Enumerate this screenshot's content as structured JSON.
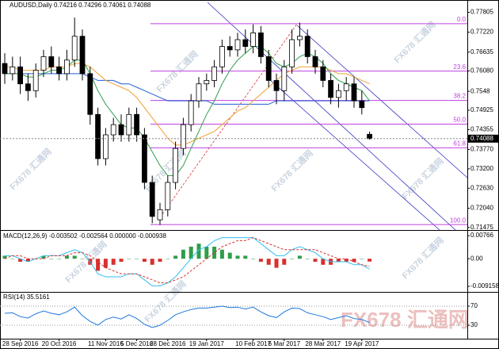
{
  "chart_data": [
    {
      "type": "candlestick",
      "title": "AUDUSD,Daily  0.74216 0.74296 0.74061 0.74088",
      "categories": [
        null,
        null,
        "28 Sep 2016",
        null,
        null,
        null,
        null,
        "20 Oct 2016",
        null,
        null,
        null,
        null,
        null,
        "11 Nov 2016",
        null,
        null,
        null,
        "5 Dec 2016",
        null,
        null,
        null,
        "28 Dec 2016",
        null,
        null,
        null,
        null,
        "19 Jan 2017",
        null,
        null,
        null,
        null,
        null,
        "10 Feb 2017",
        null,
        null,
        null,
        "6 Mar 2017",
        null,
        null,
        null,
        null,
        "28 Mar 2017",
        null,
        null,
        null,
        null,
        "19 Apr 2017",
        null
      ],
      "open": [
        0.763,
        0.76,
        0.762,
        0.757,
        0.755,
        0.761,
        0.765,
        0.762,
        0.76,
        0.764,
        0.771,
        0.76,
        0.748,
        0.735,
        0.742,
        0.745,
        0.742,
        0.748,
        0.742,
        0.728,
        0.717,
        0.72,
        0.728,
        0.738,
        0.745,
        0.752,
        0.757,
        0.758,
        0.762,
        0.768,
        0.767,
        0.77,
        0.768,
        0.772,
        0.765,
        0.758,
        0.755,
        0.762,
        0.77,
        0.771,
        0.765,
        0.762,
        0.758,
        0.753,
        0.755,
        0.757,
        0.752,
        0.74216
      ],
      "high": [
        0.766,
        0.765,
        0.765,
        0.76,
        0.763,
        0.767,
        0.768,
        0.765,
        0.767,
        0.7765,
        0.773,
        0.762,
        0.75,
        0.744,
        0.747,
        0.748,
        0.75,
        0.75,
        0.744,
        0.73,
        0.722,
        0.73,
        0.74,
        0.747,
        0.754,
        0.759,
        0.76,
        0.764,
        0.77,
        0.771,
        0.772,
        0.773,
        0.7745,
        0.774,
        0.767,
        0.76,
        0.764,
        0.773,
        0.775,
        0.773,
        0.767,
        0.764,
        0.76,
        0.757,
        0.759,
        0.759,
        0.755,
        0.74296
      ],
      "low": [
        0.757,
        0.758,
        0.754,
        0.752,
        0.753,
        0.759,
        0.76,
        0.758,
        0.758,
        0.762,
        0.758,
        0.745,
        0.733,
        0.733,
        0.74,
        0.74,
        0.74,
        0.74,
        0.726,
        0.716,
        0.7155,
        0.718,
        0.726,
        0.736,
        0.743,
        0.75,
        0.755,
        0.756,
        0.76,
        0.765,
        0.765,
        0.766,
        0.766,
        0.763,
        0.756,
        0.751,
        0.752,
        0.76,
        0.768,
        0.763,
        0.76,
        0.756,
        0.751,
        0.75,
        0.752,
        0.75,
        0.748,
        0.74061
      ],
      "close": [
        0.76,
        0.762,
        0.757,
        0.755,
        0.761,
        0.765,
        0.762,
        0.76,
        0.764,
        0.771,
        0.76,
        0.748,
        0.735,
        0.742,
        0.745,
        0.742,
        0.748,
        0.742,
        0.728,
        0.718,
        0.72,
        0.728,
        0.738,
        0.745,
        0.752,
        0.757,
        0.758,
        0.762,
        0.768,
        0.767,
        0.77,
        0.768,
        0.772,
        0.765,
        0.758,
        0.755,
        0.762,
        0.77,
        0.771,
        0.765,
        0.762,
        0.758,
        0.753,
        0.755,
        0.757,
        0.752,
        0.75,
        0.74088
      ],
      "up_color": "#ffffff",
      "down_color": "#000000",
      "series": [
        {
          "color": "#1f5fd6",
          "values": [
            0.76,
            0.76,
            0.76,
            0.76,
            0.76,
            0.76,
            0.76,
            0.76,
            0.76,
            0.76,
            0.76,
            0.759,
            0.758,
            0.758,
            0.758,
            0.757,
            0.757,
            0.756,
            0.755,
            0.754,
            0.753,
            0.752,
            0.752,
            0.752,
            0.752,
            0.752,
            0.752,
            0.751,
            0.751,
            0.751,
            0.751,
            0.751,
            0.751,
            0.751,
            0.751,
            0.752,
            0.752,
            0.752,
            0.752,
            0.752,
            0.752,
            0.752,
            0.752,
            0.752,
            0.752,
            0.752,
            0.752,
            0.752
          ]
        },
        {
          "color": "#f0a030",
          "values": [
            0.762,
            0.762,
            0.761,
            0.761,
            0.761,
            0.761,
            0.762,
            0.762,
            0.762,
            0.763,
            0.763,
            0.762,
            0.76,
            0.758,
            0.757,
            0.756,
            0.755,
            0.753,
            0.75,
            0.747,
            0.744,
            0.741,
            0.739,
            0.739,
            0.74,
            0.741,
            0.742,
            0.743,
            0.745,
            0.747,
            0.749,
            0.75,
            0.752,
            0.754,
            0.756,
            0.758,
            0.76,
            0.761,
            0.762,
            0.762,
            0.762,
            0.762,
            0.761,
            0.76,
            0.76,
            0.759,
            0.758,
            0.757
          ]
        },
        {
          "color": "#2e9e4a",
          "values": [
            0.76,
            0.76,
            0.76,
            0.759,
            0.759,
            0.76,
            0.761,
            0.761,
            0.762,
            0.764,
            0.764,
            0.76,
            0.755,
            0.751,
            0.748,
            0.745,
            0.744,
            0.744,
            0.741,
            0.737,
            0.733,
            0.73,
            0.73,
            0.733,
            0.738,
            0.743,
            0.748,
            0.752,
            0.757,
            0.761,
            0.764,
            0.766,
            0.768,
            0.768,
            0.766,
            0.763,
            0.762,
            0.763,
            0.765,
            0.766,
            0.765,
            0.763,
            0.76,
            0.758,
            0.757,
            0.756,
            0.755,
            0.752
          ]
        }
      ],
      "fib_color": "#c040e0",
      "fib_levels": [
        {
          "label": "0.0",
          "price": 0.7747
        },
        {
          "label": "23.6",
          "price": 0.76075
        },
        {
          "label": "38.2",
          "price": 0.75212
        },
        {
          "label": "50.0",
          "price": 0.74515
        },
        {
          "label": "61.8",
          "price": 0.73818
        },
        {
          "label": "100.0",
          "price": 0.7156
        }
      ],
      "last_price": 0.74088,
      "ylim": [
        0.714,
        0.7812
      ],
      "yticks": [
        0.77805,
        {
          "value": 0.7722,
          "label": "0.77220"
        },
        0.76635,
        {
          "value": 0.7608,
          "label": "0.76080"
        },
        0.7548,
        0.74925,
        0.74355,
        {
          "value": 0.7377,
          "label": "0.73770"
        },
        {
          "value": 0.732,
          "label": "0.73200"
        },
        {
          "value": 0.7263,
          "label": "0.72630"
        },
        {
          "value": 0.7204,
          "label": "0.72040"
        },
        0.71475
      ],
      "watermark": "FX678 汇通网"
    },
    {
      "type": "macd",
      "title": "MACD(12,26,9) -0.003502 -0.002564 0.000000 -0.000938",
      "up_color": "#2e9e4a",
      "down_color": "#d83030",
      "histogram": [
        0.001,
        0,
        -0.001,
        -0.001,
        0,
        0.001,
        0,
        0,
        0.001,
        0.001,
        0,
        -0.002,
        -0.004,
        -0.003,
        -0.002,
        -0.001,
        0,
        0,
        -0.001,
        -0.002,
        -0.001,
        0,
        0.001,
        0.003,
        0.004,
        0.005,
        0.004,
        0.004,
        0.003,
        0.002,
        0.001,
        0.001,
        0,
        -0.001,
        -0.002,
        -0.003,
        -0.002,
        0,
        0.001,
        0,
        -0.001,
        -0.002,
        -0.002,
        -0.001,
        -0.001,
        -0.001,
        0,
        -0.000938
      ],
      "series": [
        {
          "color": "#30c0f0",
          "values": [
            0.001,
            0.001,
            0.0,
            -0.001,
            0.0,
            0.001,
            0.001,
            0.001,
            0.002,
            0.003,
            0.002,
            -0.001,
            -0.005,
            -0.006,
            -0.006,
            -0.006,
            -0.005,
            -0.005,
            -0.007,
            -0.009,
            -0.009,
            -0.008,
            -0.006,
            -0.003,
            0.0,
            0.003,
            0.004,
            0.006,
            0.007,
            0.007,
            0.007,
            0.007,
            0.007,
            0.005,
            0.003,
            0.001,
            0.001,
            0.003,
            0.004,
            0.003,
            0.002,
            0.0,
            -0.001,
            -0.001,
            -0.001,
            -0.002,
            -0.002,
            -0.003502
          ]
        },
        {
          "color": "#d83030",
          "values": [
            0.0,
            0.001,
            0.001,
            0.0,
            0.0,
            0.0,
            0.001,
            0.001,
            0.001,
            0.002,
            0.002,
            0.001,
            -0.001,
            -0.003,
            -0.004,
            -0.005,
            -0.005,
            -0.005,
            -0.006,
            -0.007,
            -0.008,
            -0.008,
            -0.007,
            -0.006,
            -0.004,
            -0.002,
            0.0,
            0.002,
            0.004,
            0.005,
            0.006,
            0.006,
            0.007,
            0.006,
            0.005,
            0.004,
            0.003,
            0.003,
            0.003,
            0.003,
            0.003,
            0.002,
            0.001,
            0.0,
            0.0,
            -0.001,
            -0.002,
            -0.002564
          ]
        }
      ],
      "ylim": [
        -0.011,
        0.009
      ],
      "yticks": [
        0.00766,
        {
          "value": 0,
          "label": "0.00"
        },
        -0.009158
      ]
    },
    {
      "type": "line",
      "title": "RSI(14) 35.5161",
      "color": "#1e78e0",
      "values": [
        55,
        56,
        48,
        45,
        54,
        60,
        55,
        52,
        58,
        68,
        50,
        38,
        30,
        42,
        47,
        43,
        52,
        44,
        32,
        25,
        30,
        40,
        52,
        58,
        63,
        66,
        66,
        68,
        70,
        67,
        68,
        64,
        68,
        58,
        50,
        46,
        58,
        66,
        65,
        56,
        52,
        48,
        42,
        46,
        50,
        44,
        42,
        35.5161
      ],
      "ylim": [
        0,
        100
      ],
      "yticks": [
        70,
        30
      ],
      "grid": true
    }
  ]
}
